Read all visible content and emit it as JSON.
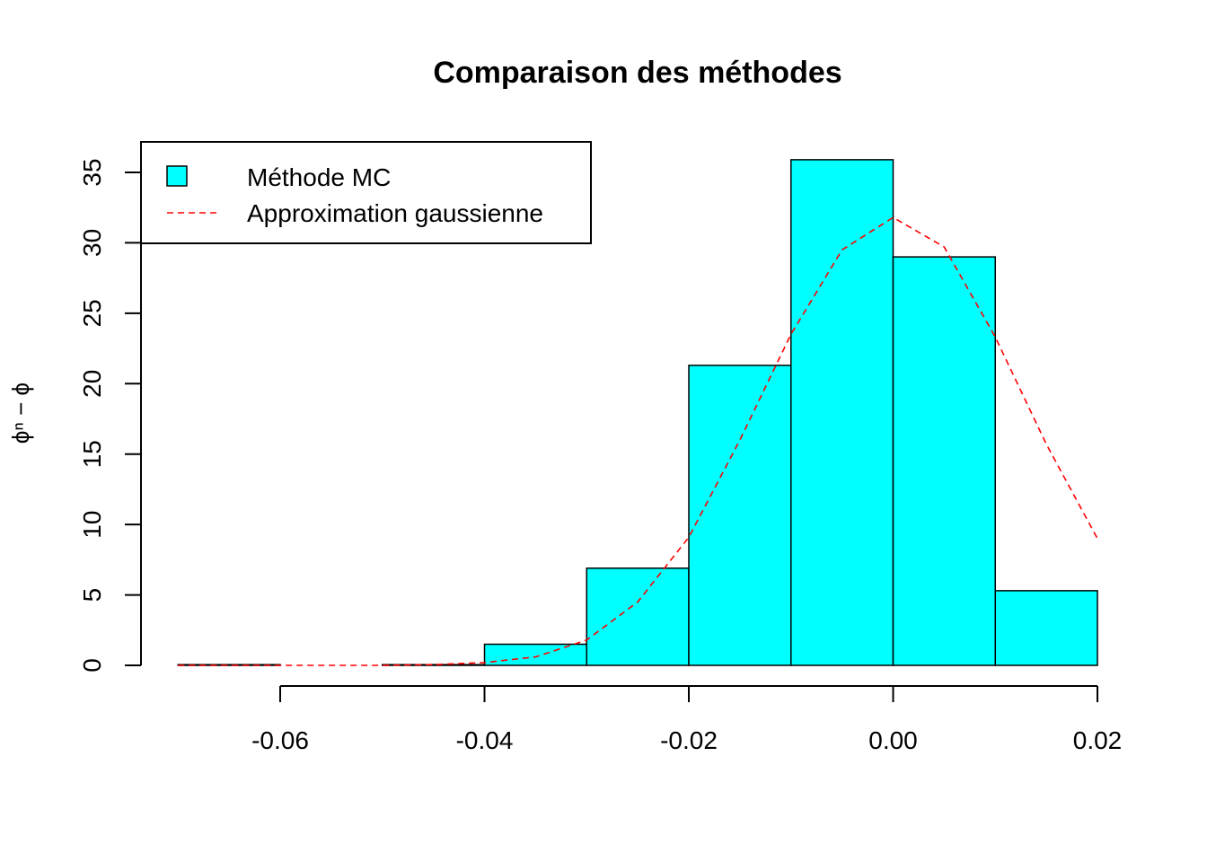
{
  "chart_data": {
    "type": "bar",
    "title": "Comparaison des méthodes",
    "xlabel": "",
    "ylabel": "ϕⁿ − ϕ",
    "xlim": [
      -0.07,
      0.02
    ],
    "ylim": [
      0,
      37
    ],
    "x_ticks": [
      -0.06,
      -0.04,
      -0.02,
      0.0,
      0.02
    ],
    "x_tick_labels": [
      "-0.06",
      "-0.04",
      "-0.02",
      "0.00",
      "0.02"
    ],
    "y_ticks": [
      0,
      5,
      10,
      15,
      20,
      25,
      30,
      35
    ],
    "y_tick_labels": [
      "0",
      "5",
      "10",
      "15",
      "20",
      "25",
      "30",
      "35"
    ],
    "bins": [
      {
        "from": -0.07,
        "to": -0.06,
        "value": 0.05
      },
      {
        "from": -0.06,
        "to": -0.05,
        "value": 0.0
      },
      {
        "from": -0.05,
        "to": -0.04,
        "value": 0.05
      },
      {
        "from": -0.04,
        "to": -0.03,
        "value": 1.5
      },
      {
        "from": -0.03,
        "to": -0.02,
        "value": 6.9
      },
      {
        "from": -0.02,
        "to": -0.01,
        "value": 21.3
      },
      {
        "from": -0.01,
        "to": 0.0,
        "value": 35.9
      },
      {
        "from": 0.0,
        "to": 0.01,
        "value": 29.0
      },
      {
        "from": 0.01,
        "to": 0.02,
        "value": 5.3
      }
    ],
    "bar_color": "#00FFFF",
    "bar_border": "#000000",
    "series": [
      {
        "name": "Approximation gaussienne",
        "type": "line",
        "style": "dashed",
        "color": "#FF0000",
        "x": [
          -0.07,
          -0.065,
          -0.06,
          -0.055,
          -0.05,
          -0.045,
          -0.04,
          -0.035,
          -0.03,
          -0.025,
          -0.02,
          -0.015,
          -0.01,
          -0.005,
          0.0,
          0.005,
          0.01,
          0.015,
          0.02
        ],
        "y": [
          0.0,
          0.0,
          0.0,
          0.0,
          0.0,
          0.05,
          0.2,
          0.6,
          1.8,
          4.5,
          9.1,
          16.0,
          23.5,
          29.5,
          31.8,
          29.7,
          23.3,
          15.7,
          9.0
        ]
      }
    ],
    "legend": {
      "position": "top-left",
      "entries": [
        {
          "label": "Méthode MC",
          "kind": "box",
          "color": "#00FFFF"
        },
        {
          "label": "Approximation gaussienne",
          "kind": "dashed-line",
          "color": "#FF0000"
        }
      ]
    },
    "grid": false
  }
}
